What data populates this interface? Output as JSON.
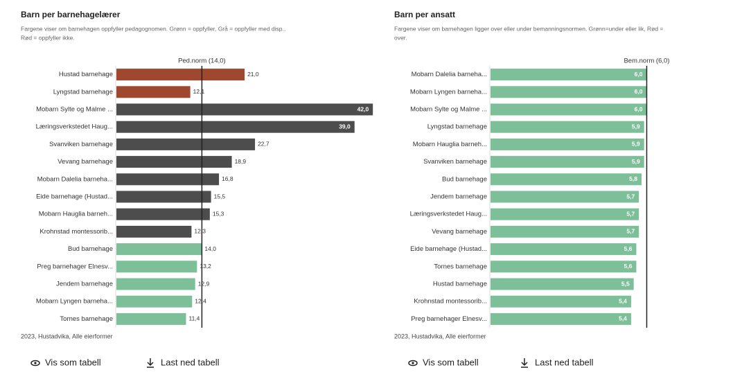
{
  "chart_data": [
    {
      "type": "bar",
      "orientation": "horizontal",
      "title": "Barn per barnehagelærer",
      "subtitle": [
        "Fargene viser om barnehagen oppfyller pedagognomen. Grønn = oppfyller, Grå = oppfyller med disp.,",
        "Rød = oppfyller ikke."
      ],
      "reference": {
        "value": 14,
        "label": "Ped.norm (14,0)"
      },
      "categories": [
        "Hustad barnehage",
        "Lyngstad barnehage",
        "Mobarn Sylte og Malme ...",
        "Læringsverkstedet Haug...",
        "Svanviken barnehage",
        "Vevang barnehage",
        "Mobarn Dalelia barneha...",
        "Eide barnehage (Hustad...",
        "Mobarn Hauglia barneh...",
        "Krohnstad montessorib...",
        "Bud barnehage",
        "Preg barnehager Elnesv...",
        "Jendem barnehage",
        "Mobarn Lyngen barneha...",
        "Tornes barnehage"
      ],
      "values": [
        21.0,
        12.1,
        42.0,
        39.0,
        22.7,
        18.9,
        16.8,
        15.5,
        15.3,
        12.3,
        14.0,
        13.2,
        12.9,
        12.4,
        11.4
      ],
      "value_labels": [
        "21,0",
        "12,1",
        "42,0",
        "39,0",
        "22,7",
        "18,9",
        "16,8",
        "15,5",
        "15,3",
        "12,3",
        "14,0",
        "13,2",
        "12,9",
        "12,4",
        "11,4"
      ],
      "colors": [
        "#a0482f",
        "#a0482f",
        "#4d4d4d",
        "#4d4d4d",
        "#4d4d4d",
        "#4d4d4d",
        "#4d4d4d",
        "#4d4d4d",
        "#4d4d4d",
        "#4d4d4d",
        "#7dbf98",
        "#7dbf98",
        "#7dbf98",
        "#7dbf98",
        "#7dbf98"
      ],
      "xlim": [
        0,
        43
      ],
      "note": "2023, Hustadvika, Alle eierformer",
      "buttons": [
        "Vis som tabell",
        "Last ned tabell"
      ]
    },
    {
      "type": "bar",
      "orientation": "horizontal",
      "title": "Barn per ansatt",
      "subtitle": [
        "Fargene viser om barnehagen ligger over eller under bemanningsnormen. Grønn=under eller lik, Rød =",
        "over."
      ],
      "reference": {
        "value": 6,
        "label": "Bem.norm (6,0)"
      },
      "categories": [
        "Mobarn Dalelia barneha...",
        "Mobarn Lyngen barneha...",
        "Mobarn Sylte og Malme ...",
        "Lyngstad barnehage",
        "Mobarn Hauglia barneh...",
        "Svanviken barnehage",
        "Bud barnehage",
        "Jendem barnehage",
        "Læringsverkstedet Haug...",
        "Vevang barnehage",
        "Eide barnehage (Hustad...",
        "Tornes barnehage",
        "Hustad barnehage",
        "Krohnstad montessorib...",
        "Preg barnehager Elnesv..."
      ],
      "values": [
        6.0,
        6.0,
        6.0,
        5.9,
        5.9,
        5.9,
        5.8,
        5.7,
        5.7,
        5.7,
        5.6,
        5.6,
        5.5,
        5.4,
        5.4
      ],
      "value_labels": [
        "6,0",
        "6,0",
        "6,0",
        "5,9",
        "5,9",
        "5,9",
        "5,8",
        "5,7",
        "5,7",
        "5,7",
        "5,6",
        "5,6",
        "5,5",
        "5,4",
        "5,4"
      ],
      "colors": [
        "#7dbf98",
        "#7dbf98",
        "#7dbf98",
        "#7dbf98",
        "#7dbf98",
        "#7dbf98",
        "#7dbf98",
        "#7dbf98",
        "#7dbf98",
        "#7dbf98",
        "#7dbf98",
        "#7dbf98",
        "#7dbf98",
        "#7dbf98",
        "#7dbf98"
      ],
      "xlim": [
        0,
        6.2
      ],
      "note": "2023, Hustadvika, Alle eierformer",
      "buttons": [
        "Vis som tabell",
        "Last ned tabell"
      ]
    }
  ]
}
